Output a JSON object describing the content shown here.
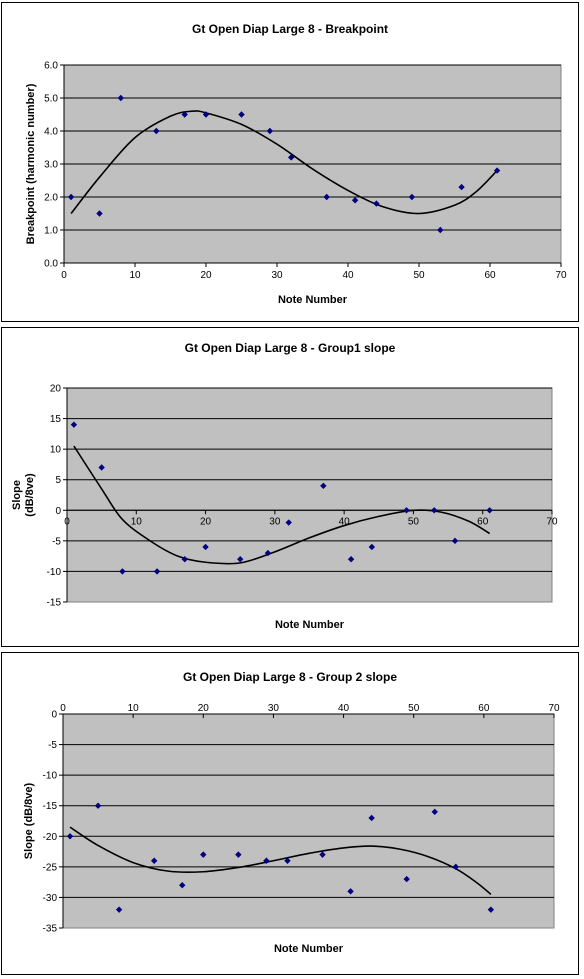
{
  "colors": {
    "plot_area": "#c0c0c0",
    "marker": "#000080",
    "trend": "#000000",
    "grid": "#000000"
  },
  "chart_data": [
    {
      "type": "scatter",
      "title": "Gt Open Diap Large 8 - Breakpoint",
      "xlabel": "Note Number",
      "ylabel": "Breakpoint (harmonic number)",
      "xlim": [
        0,
        70
      ],
      "ylim": [
        0.0,
        6.0
      ],
      "xticks": [
        "0",
        "10",
        "20",
        "30",
        "40",
        "50",
        "60",
        "70"
      ],
      "yticks": [
        "0.0",
        "1.0",
        "2.0",
        "3.0",
        "4.0",
        "5.0",
        "6.0"
      ],
      "grid": "horizontal",
      "trendline": "polynomial",
      "series": [
        {
          "x": [
            1,
            5,
            8,
            13,
            17,
            20,
            25,
            29,
            32,
            37,
            41,
            44,
            49,
            53,
            56,
            61
          ],
          "y": [
            2.0,
            1.5,
            5.0,
            4.0,
            4.5,
            4.5,
            4.5,
            4.0,
            3.2,
            2.0,
            1.9,
            1.8,
            2.0,
            1.0,
            2.3,
            2.8
          ]
        }
      ],
      "trend_points": [
        [
          1,
          1.5
        ],
        [
          5,
          2.6
        ],
        [
          10,
          3.8
        ],
        [
          15,
          4.45
        ],
        [
          18,
          4.6
        ],
        [
          20,
          4.55
        ],
        [
          25,
          4.2
        ],
        [
          30,
          3.6
        ],
        [
          35,
          2.85
        ],
        [
          40,
          2.2
        ],
        [
          45,
          1.7
        ],
        [
          50,
          1.5
        ],
        [
          55,
          1.75
        ],
        [
          58,
          2.15
        ],
        [
          61,
          2.8
        ]
      ]
    },
    {
      "type": "scatter",
      "title": "Gt Open Diap Large 8 - Group1 slope",
      "xlabel": "Note Number",
      "ylabel": "Slope (dB/8ve)",
      "xlim": [
        0,
        70
      ],
      "ylim": [
        -15,
        20
      ],
      "xticks": [
        "0",
        "10",
        "20",
        "30",
        "40",
        "50",
        "60",
        "70"
      ],
      "yticks": [
        "-15",
        "-10",
        "-5",
        "0",
        "5",
        "10",
        "15",
        "20"
      ],
      "grid": "horizontal",
      "trendline": "polynomial",
      "series": [
        {
          "x": [
            1,
            5,
            8,
            13,
            17,
            20,
            25,
            29,
            32,
            37,
            41,
            44,
            49,
            53,
            56,
            61
          ],
          "y": [
            14,
            7,
            -10,
            -10,
            -8,
            -6,
            -8,
            -7,
            -2,
            4,
            -8,
            -6,
            0,
            0,
            -5,
            0
          ]
        }
      ],
      "trend_points": [
        [
          1,
          10.5
        ],
        [
          5,
          3.5
        ],
        [
          8,
          -1.5
        ],
        [
          12,
          -5
        ],
        [
          16,
          -7.5
        ],
        [
          20,
          -8.5
        ],
        [
          25,
          -8.6
        ],
        [
          30,
          -6.8
        ],
        [
          35,
          -4.5
        ],
        [
          40,
          -2.5
        ],
        [
          45,
          -1.0
        ],
        [
          50,
          0
        ],
        [
          54,
          -0.3
        ],
        [
          58,
          -1.8
        ],
        [
          61,
          -3.8
        ]
      ]
    },
    {
      "type": "scatter",
      "title": "Gt Open Diap Large 8 - Group 2 slope",
      "xlabel": "Note Number",
      "ylabel": "Slope (dB/8ve)",
      "xlim": [
        0,
        70
      ],
      "ylim": [
        -35,
        0
      ],
      "xticks": [
        "0",
        "10",
        "20",
        "30",
        "40",
        "50",
        "60",
        "70"
      ],
      "yticks": [
        "-35",
        "-30",
        "-25",
        "-20",
        "-15",
        "-10",
        "-5",
        "0"
      ],
      "grid": "horizontal",
      "trendline": "polynomial",
      "series": [
        {
          "x": [
            1,
            5,
            8,
            13,
            17,
            20,
            25,
            29,
            32,
            37,
            41,
            44,
            49,
            53,
            56,
            61
          ],
          "y": [
            -20,
            -15,
            -32,
            -24,
            -28,
            -23,
            -23,
            -24,
            -24,
            -23,
            -29,
            -17,
            -27,
            -16,
            -25,
            -32
          ]
        }
      ],
      "trend_points": [
        [
          1,
          -18.5
        ],
        [
          5,
          -21.5
        ],
        [
          10,
          -24.3
        ],
        [
          15,
          -25.7
        ],
        [
          20,
          -25.8
        ],
        [
          25,
          -25.1
        ],
        [
          30,
          -24.0
        ],
        [
          35,
          -22.8
        ],
        [
          40,
          -21.9
        ],
        [
          44,
          -21.6
        ],
        [
          48,
          -22.1
        ],
        [
          52,
          -23.3
        ],
        [
          56,
          -25.3
        ],
        [
          59,
          -27.6
        ],
        [
          61,
          -29.5
        ]
      ]
    }
  ]
}
